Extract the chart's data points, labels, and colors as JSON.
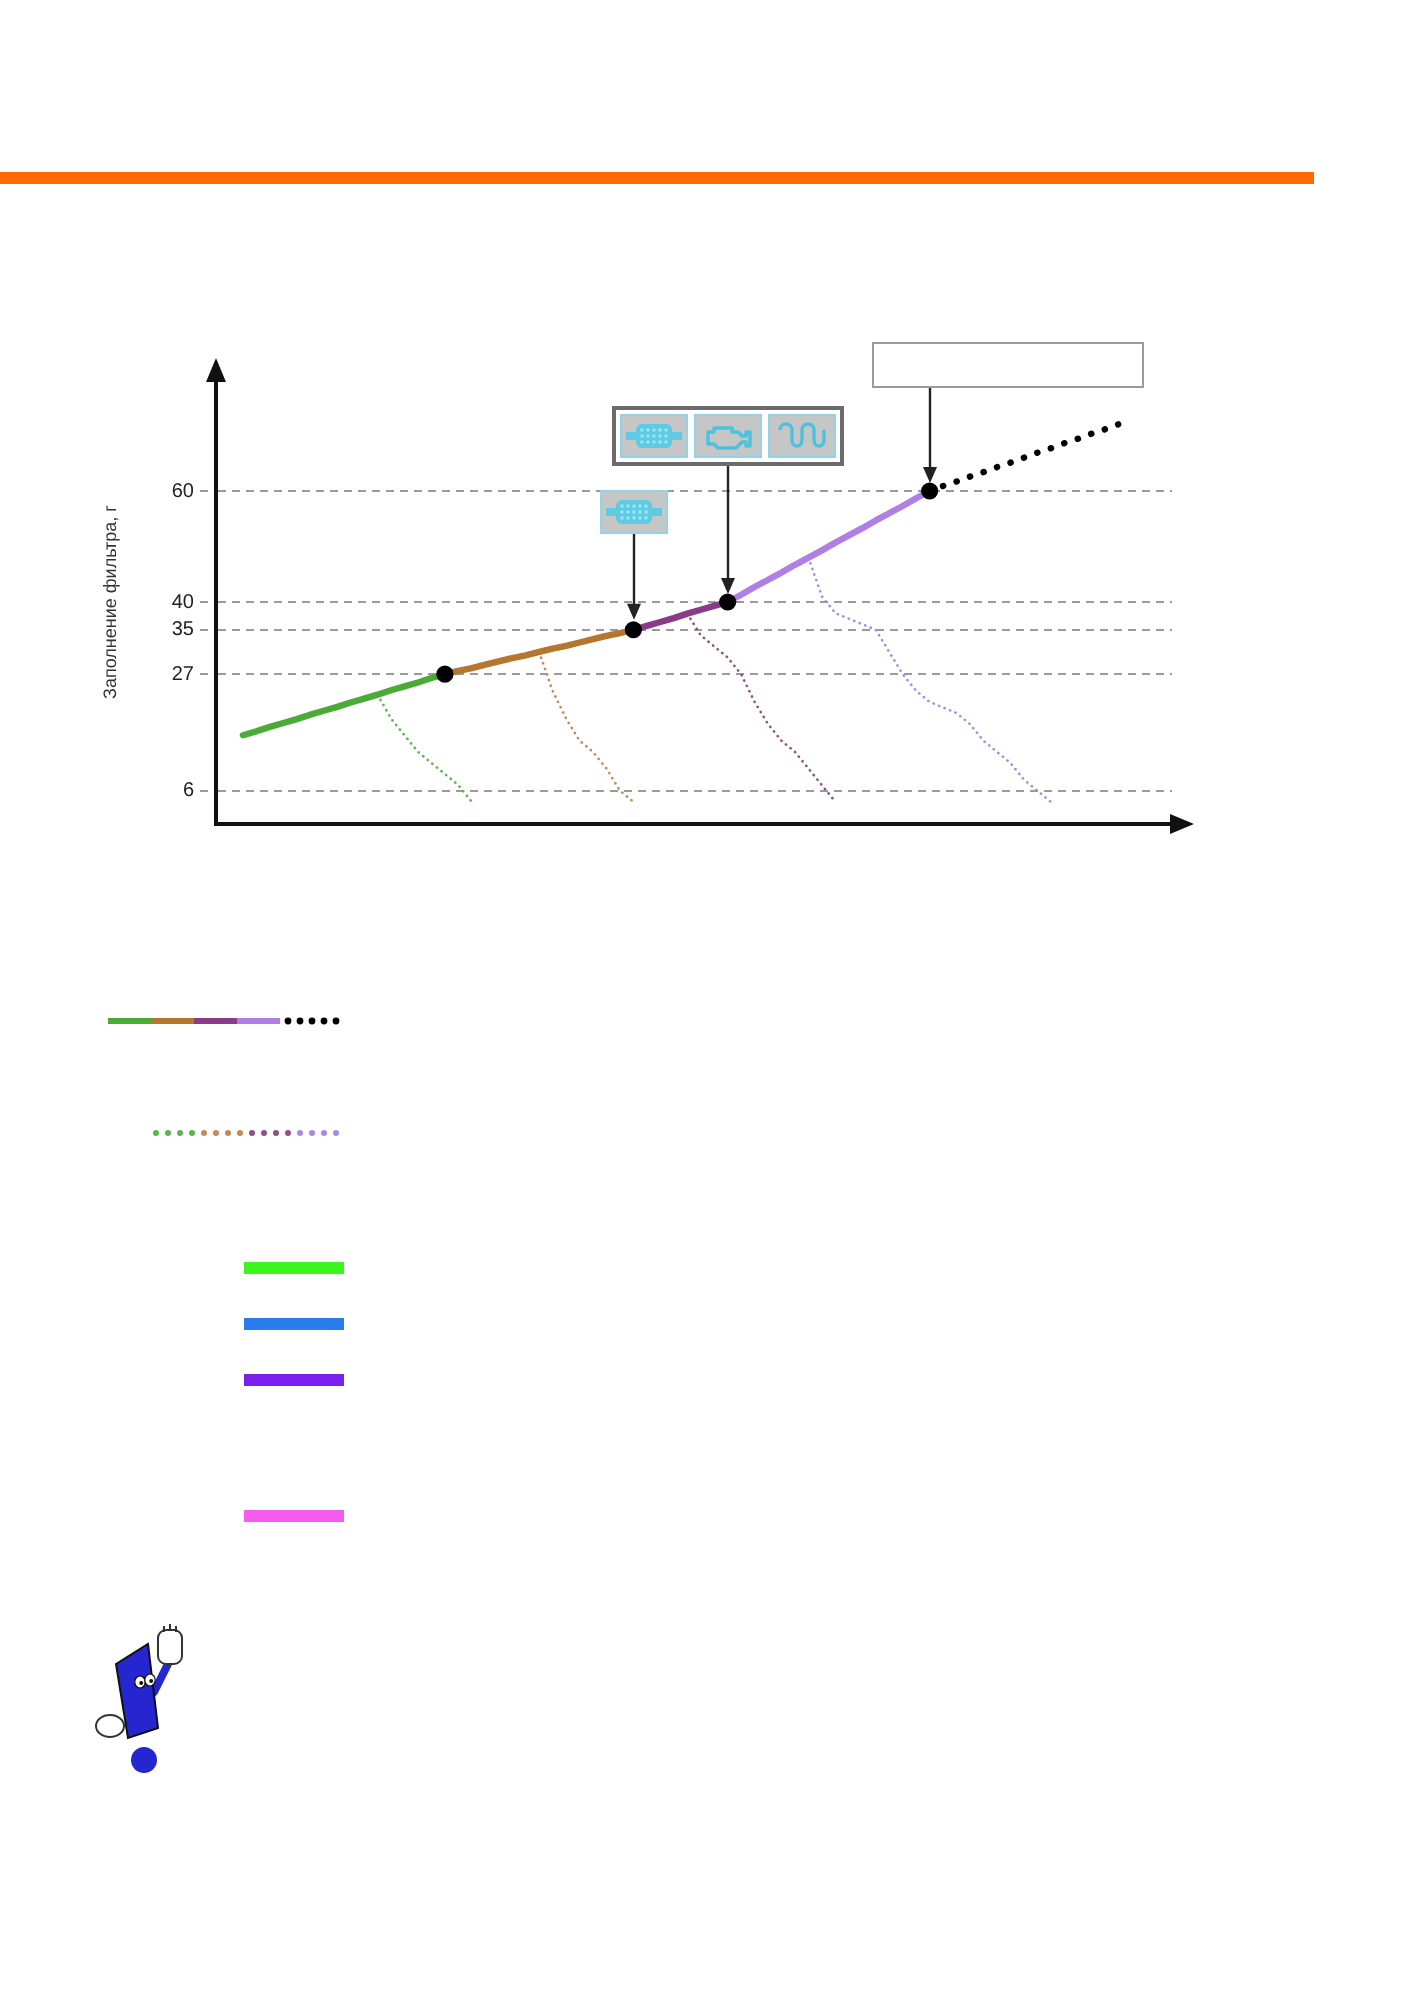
{
  "chart_data": {
    "type": "line",
    "ylabel": "Заполнение фильтра, г",
    "categories": [
      null,
      null,
      null,
      null,
      null,
      null,
      null,
      null,
      null,
      null,
      null,
      null,
      null,
      null,
      null,
      null,
      null,
      null,
      null,
      null,
      null,
      null,
      null,
      null,
      null,
      null,
      null,
      null,
      null,
      null,
      null,
      null,
      null,
      null,
      null,
      null,
      null,
      null,
      null,
      null,
      null,
      null,
      null,
      null,
      null,
      null,
      null,
      null,
      null,
      null,
      null,
      null,
      null,
      null,
      null,
      null,
      null,
      null,
      null,
      null,
      null,
      null,
      null,
      null,
      null,
      null,
      null,
      null,
      null,
      null,
      null,
      null
    ],
    "ylim": [
      0,
      80
    ],
    "yticks": [
      6,
      27,
      35,
      40,
      60
    ],
    "grid": "y",
    "tick_labels": "y",
    "series": [
      {
        "color": "#4aab36",
        "values": [
          null,
          null,
          16,
          16.7,
          17.5,
          18.2,
          18.9,
          19.7,
          20.4,
          21.1,
          21.9,
          22.6,
          23.3,
          24.1,
          24.8,
          25.5,
          26.3,
          27,
          null,
          null,
          null,
          null,
          null,
          null,
          null,
          null,
          null,
          null,
          null,
          null,
          null,
          null,
          null,
          null,
          null,
          null,
          null,
          null,
          null,
          null,
          null,
          null,
          null,
          null,
          null,
          null,
          null,
          null,
          null,
          null,
          null,
          null,
          null,
          null,
          null,
          null,
          null,
          null,
          null,
          null,
          null,
          null,
          null,
          null,
          null,
          null,
          null,
          null,
          null,
          null,
          null,
          null
        ]
      },
      {
        "color": "#b5762d",
        "values": [
          null,
          null,
          null,
          null,
          null,
          null,
          null,
          null,
          null,
          null,
          null,
          null,
          null,
          null,
          null,
          null,
          null,
          27,
          27.6,
          28.1,
          28.7,
          29.3,
          29.9,
          30.4,
          31,
          31.6,
          32.1,
          32.7,
          33.3,
          33.9,
          34.4,
          35,
          null,
          null,
          null,
          null,
          null,
          null,
          null,
          null,
          null,
          null,
          null,
          null,
          null,
          null,
          null,
          null,
          null,
          null,
          null,
          null,
          null,
          null,
          null,
          null,
          null,
          null,
          null,
          null,
          null,
          null,
          null,
          null,
          null,
          null,
          null,
          null,
          null,
          null,
          null,
          null
        ]
      },
      {
        "color": "#8a3b88",
        "values": [
          null,
          null,
          null,
          null,
          null,
          null,
          null,
          null,
          null,
          null,
          null,
          null,
          null,
          null,
          null,
          null,
          null,
          null,
          null,
          null,
          null,
          null,
          null,
          null,
          null,
          null,
          null,
          null,
          null,
          null,
          null,
          35,
          35.7,
          36.4,
          37.1,
          37.9,
          38.6,
          39.3,
          40,
          null,
          null,
          null,
          null,
          null,
          null,
          null,
          null,
          null,
          null,
          null,
          null,
          null,
          null,
          null,
          null,
          null,
          null,
          null,
          null,
          null,
          null,
          null,
          null,
          null,
          null,
          null,
          null,
          null,
          null,
          null,
          null,
          null
        ]
      },
      {
        "color": "#b07fe5",
        "values": [
          null,
          null,
          null,
          null,
          null,
          null,
          null,
          null,
          null,
          null,
          null,
          null,
          null,
          null,
          null,
          null,
          null,
          null,
          null,
          null,
          null,
          null,
          null,
          null,
          null,
          null,
          null,
          null,
          null,
          null,
          null,
          null,
          null,
          null,
          null,
          null,
          null,
          null,
          40,
          41.3,
          42.7,
          44,
          45.3,
          46.7,
          48,
          49.3,
          50.7,
          52,
          53.3,
          54.7,
          56,
          57.3,
          58.7,
          60,
          null,
          null,
          null,
          null,
          null,
          null,
          null,
          null,
          null,
          null,
          null,
          null,
          null,
          null,
          null,
          null,
          null,
          null
        ]
      },
      {
        "color": "#000000",
        "line_style": "dotted",
        "values": [
          null,
          null,
          null,
          null,
          null,
          null,
          null,
          null,
          null,
          null,
          null,
          null,
          null,
          null,
          null,
          null,
          null,
          null,
          null,
          null,
          null,
          null,
          null,
          null,
          null,
          null,
          null,
          null,
          null,
          null,
          null,
          null,
          null,
          null,
          null,
          null,
          null,
          null,
          null,
          null,
          null,
          null,
          null,
          null,
          null,
          null,
          null,
          null,
          null,
          null,
          null,
          null,
          null,
          60,
          60.9,
          61.7,
          62.6,
          63.4,
          64.3,
          65.1,
          66,
          66.9,
          67.7,
          68.6,
          69.4,
          70.3,
          71.1,
          72,
          null,
          null,
          null,
          null
        ]
      },
      {
        "color": "#5db352",
        "line_style": "dotted",
        "values": [
          null,
          null,
          null,
          null,
          null,
          null,
          null,
          null,
          null,
          null,
          null,
          null,
          23.3,
          19,
          16,
          13,
          11,
          9,
          7,
          4,
          null,
          null,
          null,
          null,
          null,
          null,
          null,
          null,
          null,
          null,
          null,
          null,
          null,
          null,
          null,
          null,
          null,
          null,
          null,
          null,
          null,
          null,
          null,
          null,
          null,
          null,
          null,
          null,
          null,
          null,
          null,
          null,
          null,
          null,
          null,
          null,
          null,
          null,
          null,
          null,
          null,
          null,
          null,
          null,
          null,
          null,
          null,
          null,
          null,
          null,
          null,
          null
        ]
      },
      {
        "color": "#c48a55",
        "line_style": "dotted",
        "values": [
          null,
          null,
          null,
          null,
          null,
          null,
          null,
          null,
          null,
          null,
          null,
          null,
          null,
          null,
          null,
          null,
          null,
          null,
          null,
          null,
          null,
          null,
          null,
          null,
          31,
          24,
          19,
          15,
          13,
          10,
          6,
          4,
          null,
          null,
          null,
          null,
          null,
          null,
          null,
          null,
          null,
          null,
          null,
          null,
          null,
          null,
          null,
          null,
          null,
          null,
          null,
          null,
          null,
          null,
          null,
          null,
          null,
          null,
          null,
          null,
          null,
          null,
          null,
          null,
          null,
          null,
          null,
          null,
          null,
          null,
          null,
          null
        ]
      },
      {
        "color": "#8f4f87",
        "line_style": "dotted",
        "values": [
          null,
          null,
          null,
          null,
          null,
          null,
          null,
          null,
          null,
          null,
          null,
          null,
          null,
          null,
          null,
          null,
          null,
          null,
          null,
          null,
          null,
          null,
          null,
          null,
          null,
          null,
          null,
          null,
          null,
          null,
          null,
          null,
          null,
          null,
          null,
          37.9,
          34,
          32,
          30,
          27,
          22,
          18,
          15,
          13,
          10,
          7,
          4,
          null,
          null,
          null,
          null,
          null,
          null,
          null,
          null,
          null,
          null,
          null,
          null,
          null,
          null,
          null,
          null,
          null,
          null,
          null,
          null,
          null,
          null,
          null,
          null,
          null
        ]
      },
      {
        "color": "#a98ade",
        "line_style": "dotted",
        "values": [
          null,
          null,
          null,
          null,
          null,
          null,
          null,
          null,
          null,
          null,
          null,
          null,
          null,
          null,
          null,
          null,
          null,
          null,
          null,
          null,
          null,
          null,
          null,
          null,
          null,
          null,
          null,
          null,
          null,
          null,
          null,
          null,
          null,
          null,
          null,
          null,
          null,
          null,
          null,
          null,
          null,
          null,
          null,
          null,
          48,
          41,
          38,
          37,
          36,
          35,
          31,
          27,
          24,
          22,
          21,
          20,
          18,
          15,
          13,
          11,
          8,
          6,
          4,
          null,
          null,
          null,
          null,
          null,
          null,
          null,
          null,
          null
        ]
      },
      {
        "type": "scatter",
        "marker": "circle",
        "color": "#000000",
        "values": [
          null,
          null,
          null,
          null,
          null,
          null,
          null,
          null,
          null,
          null,
          null,
          null,
          null,
          null,
          null,
          null,
          null,
          27,
          null,
          null,
          null,
          null,
          null,
          null,
          null,
          null,
          null,
          null,
          null,
          null,
          null,
          35,
          null,
          null,
          null,
          null,
          null,
          null,
          40,
          null,
          null,
          null,
          null,
          null,
          null,
          null,
          null,
          null,
          null,
          null,
          null,
          null,
          null,
          60,
          null,
          null,
          null,
          null,
          null,
          null,
          null,
          null,
          null,
          null,
          null,
          null,
          null,
          null,
          null,
          null,
          null,
          null
        ]
      }
    ]
  }
}
